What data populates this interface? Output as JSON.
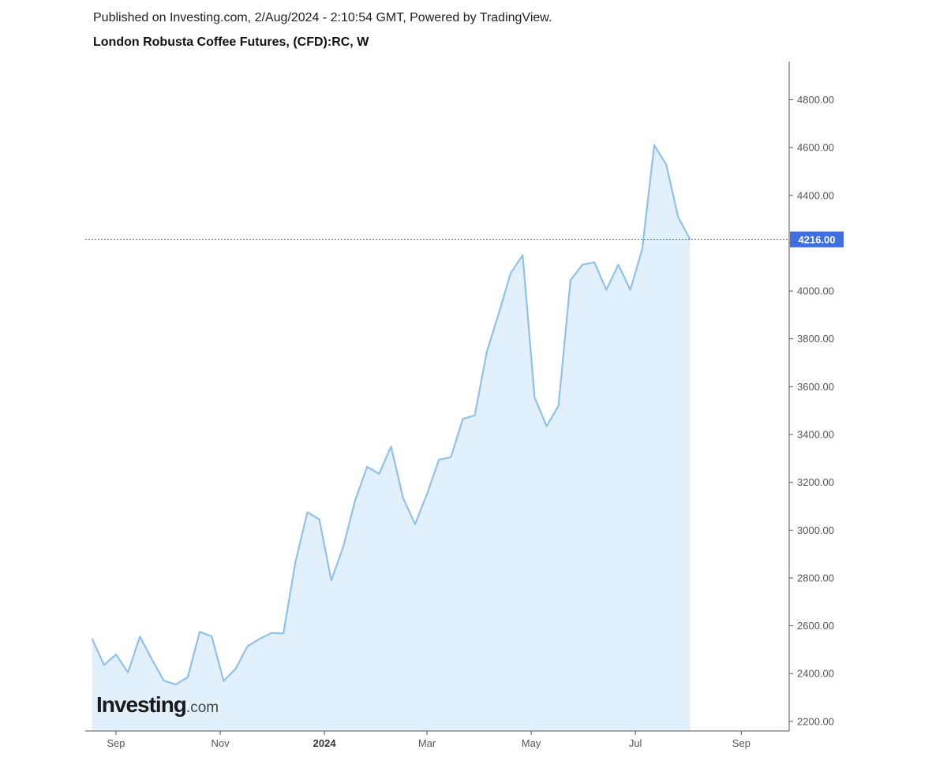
{
  "header": {
    "published": "Published on Investing.com, 2/Aug/2024 - 2:10:54 GMT, Powered by TradingView.",
    "title": "London Robusta Coffee Futures, (CFD):RC, W"
  },
  "logo": {
    "main": "Investing",
    "suffix": ".com"
  },
  "colors": {
    "line": "#8fc1ec",
    "area": "#e1f0fa",
    "price_marker": "#3d6fe0",
    "axis": "#555555"
  },
  "chart_data": {
    "type": "area",
    "title": "London Robusta Coffee Futures, (CFD):RC, W",
    "xlabel": "",
    "ylabel": "",
    "ylim": [
      2160,
      4960
    ],
    "y_ticks": [
      "2200.00",
      "2400.00",
      "2600.00",
      "2800.00",
      "3000.00",
      "3200.00",
      "3400.00",
      "3600.00",
      "3800.00",
      "4000.00",
      "4200.00",
      "4400.00",
      "4600.00",
      "4800.00"
    ],
    "x_ticks": [
      {
        "label": "Sep",
        "date": "2023-09-01",
        "bold": false
      },
      {
        "label": "Nov",
        "date": "2023-11-01",
        "bold": false
      },
      {
        "label": "2024",
        "date": "2024-01-01",
        "bold": true
      },
      {
        "label": "Mar",
        "date": "2024-03-01",
        "bold": false
      },
      {
        "label": "May",
        "date": "2024-05-01",
        "bold": false
      },
      {
        "label": "Jul",
        "date": "2024-07-01",
        "bold": false
      },
      {
        "label": "Sep",
        "date": "2024-09-01",
        "bold": false
      }
    ],
    "x_range": [
      "2023-08-14",
      "2024-09-29"
    ],
    "last_price": {
      "value": 4216,
      "label": "4216.00"
    },
    "grid": false,
    "series": [
      {
        "x": [
          "2023-08-18",
          "2023-08-25",
          "2023-09-01",
          "2023-09-08",
          "2023-09-15",
          "2023-09-22",
          "2023-09-29",
          "2023-10-06",
          "2023-10-13",
          "2023-10-20",
          "2023-10-27",
          "2023-11-03",
          "2023-11-10",
          "2023-11-17",
          "2023-11-24",
          "2023-12-01",
          "2023-12-08",
          "2023-12-15",
          "2023-12-22",
          "2023-12-29",
          "2024-01-05",
          "2024-01-12",
          "2024-01-19",
          "2024-01-26",
          "2024-02-02",
          "2024-02-09",
          "2024-02-16",
          "2024-02-23",
          "2024-03-01",
          "2024-03-08",
          "2024-03-15",
          "2024-03-22",
          "2024-03-29",
          "2024-04-05",
          "2024-04-12",
          "2024-04-19",
          "2024-04-26",
          "2024-05-03",
          "2024-05-10",
          "2024-05-17",
          "2024-05-24",
          "2024-05-31",
          "2024-06-07",
          "2024-06-14",
          "2024-06-21",
          "2024-06-28",
          "2024-07-05",
          "2024-07-12",
          "2024-07-19",
          "2024-07-26",
          "2024-08-02"
        ],
        "values": [
          2546,
          2436,
          2480,
          2405,
          2555,
          2460,
          2370,
          2355,
          2385,
          2575,
          2556,
          2369,
          2420,
          2515,
          2545,
          2570,
          2568,
          2865,
          3075,
          3045,
          2790,
          2930,
          3125,
          3265,
          3235,
          3350,
          3135,
          3025,
          3150,
          3295,
          3305,
          3465,
          3480,
          3745,
          3905,
          4075,
          4150,
          3555,
          3435,
          3520,
          4045,
          4110,
          4120,
          4005,
          4110,
          4005,
          4175,
          4610,
          4530,
          4310,
          4216
        ]
      }
    ]
  }
}
